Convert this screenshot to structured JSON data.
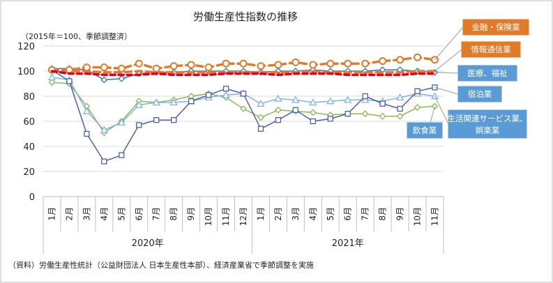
{
  "chart_data": {
    "type": "line",
    "title": "労働生産性指数の推移",
    "subtitle": "（2015年＝100、季節調整済）",
    "source_note": "（資料）労働生産性統計（公益財団法人 日本生産性本部）、経済産業省で季節調整を実施",
    "ylim": [
      0,
      120
    ],
    "yticks": [
      "0",
      "20",
      "40",
      "60",
      "80",
      "100",
      "120"
    ],
    "categories": [
      "1月",
      "2月",
      "3月",
      "4月",
      "5月",
      "6月",
      "7月",
      "8月",
      "9月",
      "10月",
      "11月",
      "12月",
      "1月",
      "2月",
      "3月",
      "4月",
      "5月",
      "6月",
      "7月",
      "8月",
      "9月",
      "10月",
      "11月"
    ],
    "year_labels": [
      "2020年",
      "2021年"
    ],
    "series": [
      {
        "name": "金融・保険業",
        "color": "#E07B28",
        "values": [
          101,
          101,
          103,
          103,
          102,
          106,
          102,
          104,
          105,
          103,
          106,
          106,
          104,
          105,
          107,
          105,
          106,
          106,
          106,
          108,
          109,
          111,
          109
        ]
      },
      {
        "name": "情報通信業",
        "color": "#E07B28",
        "values": [
          100,
          100,
          100,
          99,
          99,
          100,
          99,
          99,
          99,
          99,
          99,
          99,
          99,
          99,
          99,
          100,
          99,
          99,
          99,
          99,
          99,
          100,
          100
        ]
      },
      {
        "name": "医療、福祉",
        "color": "#2E75B6",
        "values": [
          102,
          102,
          101,
          93,
          94,
          98,
          99,
          99,
          100,
          100,
          100,
          100,
          99,
          100,
          100,
          101,
          100,
          100,
          100,
          101,
          101,
          100,
          99
        ]
      },
      {
        "name": "宿泊業",
        "color": "#4C5FAE",
        "values": [
          101,
          92,
          50,
          28,
          33,
          57,
          61,
          61,
          76,
          81,
          86,
          82,
          54,
          61,
          69,
          60,
          62,
          66,
          80,
          74,
          70,
          84,
          87
        ]
      },
      {
        "name": "生活関連サービス業、娯楽業",
        "color": "#7DB3E6",
        "values": [
          95,
          93,
          68,
          53,
          59,
          73,
          75,
          75,
          76,
          79,
          81,
          82,
          74,
          78,
          77,
          75,
          76,
          77,
          77,
          76,
          79,
          82,
          80
        ]
      },
      {
        "name": "飲食業",
        "color": "#8DB750",
        "values": [
          91,
          90,
          72,
          51,
          60,
          76,
          75,
          77,
          80,
          82,
          79,
          70,
          63,
          69,
          68,
          67,
          65,
          66,
          66,
          64,
          64,
          71,
          72
        ]
      },
      {
        "name": "",
        "color": "#E0001A",
        "values": [
          100,
          98,
          98,
          97,
          97,
          97,
          98,
          97,
          97,
          97,
          98,
          98,
          98,
          97,
          98,
          98,
          98,
          97,
          97,
          97,
          97,
          98,
          98
        ]
      }
    ],
    "grid": true
  }
}
